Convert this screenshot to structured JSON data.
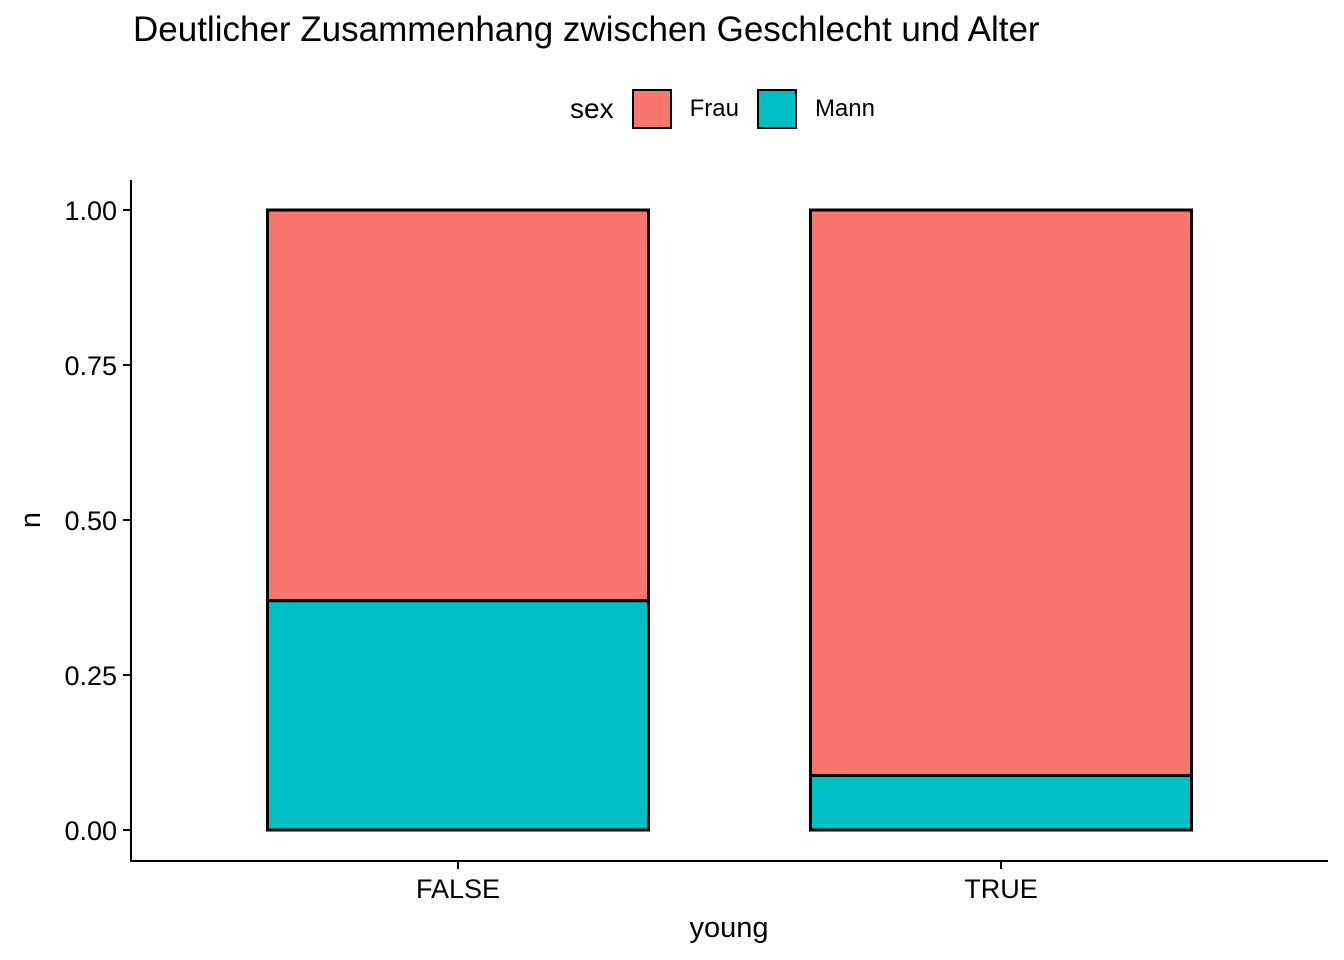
{
  "chart_data": {
    "type": "bar",
    "stacked": true,
    "title": "Deutlicher Zusammenhang zwischen Geschlecht und Alter",
    "xlabel": "young",
    "ylabel": "n",
    "categories": [
      "FALSE",
      "TRUE"
    ],
    "ylim": [
      0,
      1
    ],
    "yticks": [
      "0.00",
      "0.25",
      "0.50",
      "0.75",
      "1.00"
    ],
    "legend_title": "sex",
    "legend_position": "top",
    "grid": false,
    "series": [
      {
        "name": "Mann",
        "color": "#00BFC4",
        "values": [
          0.37,
          0.088
        ]
      },
      {
        "name": "Frau",
        "color": "#F8766D",
        "values": [
          0.63,
          0.912
        ]
      }
    ]
  }
}
